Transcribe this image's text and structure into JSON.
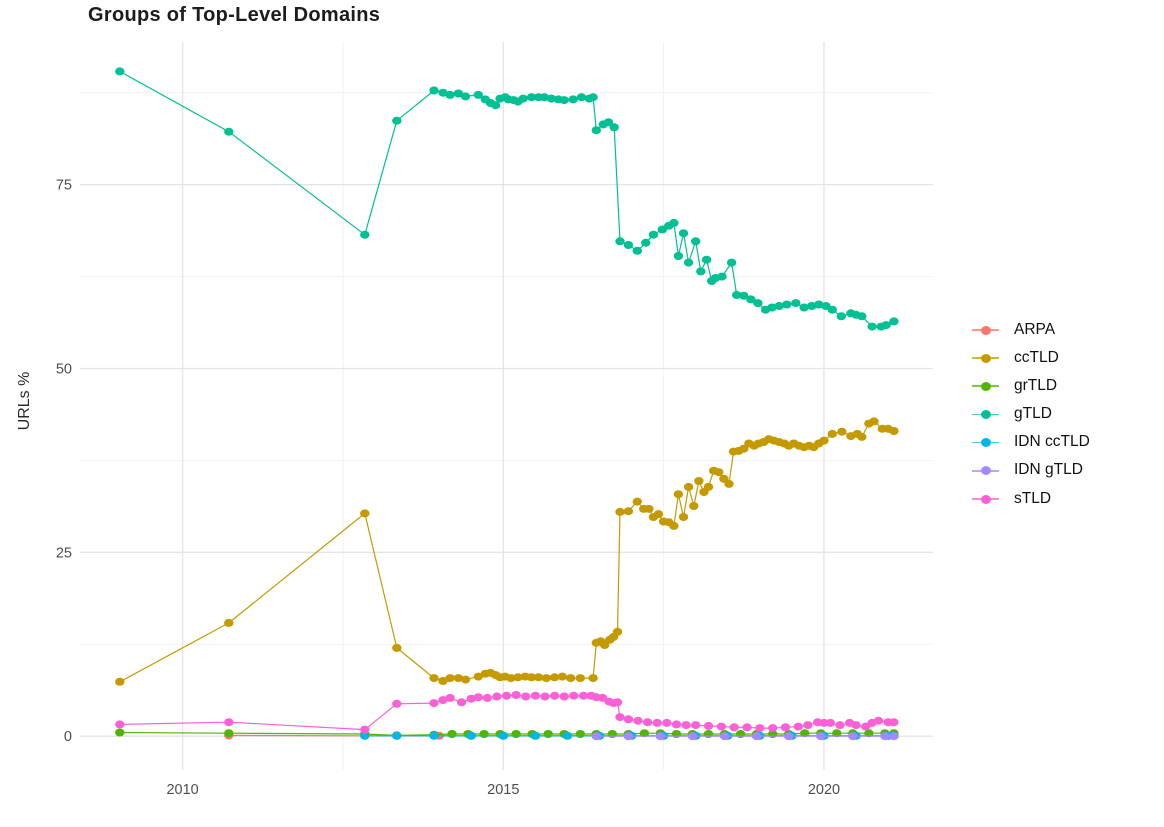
{
  "chart_data": {
    "type": "line",
    "title": "Groups of Top-Level Domains",
    "xlabel": "",
    "ylabel": "URLs %",
    "legend_position": "right",
    "grid": true,
    "background": "#ffffff",
    "grid_major_color": "#e4e4e4",
    "grid_minor_color": "#f1f1f1",
    "tick_color": "#4d4d4d",
    "xlim": [
      2008.4,
      2021.7
    ],
    "ylim": [
      -4.6,
      94.4
    ],
    "x_ticks": [
      {
        "label": "2010",
        "year": 2010
      },
      {
        "label": "2015",
        "year": 2015
      },
      {
        "label": "2020",
        "year": 2020
      }
    ],
    "x_minor_ticks": [
      2012.5,
      2017.5
    ],
    "y_ticks": [
      {
        "label": "0",
        "value": 0
      },
      {
        "label": "25",
        "value": 25
      },
      {
        "label": "50",
        "value": 50
      },
      {
        "label": "75",
        "value": 75
      }
    ],
    "y_minor_ticks": [
      12.5,
      37.5,
      62.5,
      87.5
    ],
    "series": [
      {
        "name": "ARPA",
        "color": "#F8766D",
        "points": [
          [
            2010.72,
            0.1
          ],
          [
            2012.84,
            0.05
          ],
          [
            2013.34,
            0.05
          ],
          [
            2014.0,
            0.05
          ],
          [
            2014.5,
            0.05
          ],
          [
            2015.0,
            0.05
          ],
          [
            2015.5,
            0.05
          ],
          [
            2016.0,
            0.05
          ],
          [
            2016.5,
            0.05
          ],
          [
            2017.0,
            0.05
          ],
          [
            2017.5,
            0.05
          ],
          [
            2018.0,
            0.05
          ],
          [
            2018.5,
            0.05
          ],
          [
            2019.0,
            0.05
          ],
          [
            2019.5,
            0.05
          ],
          [
            2020.0,
            0.05
          ],
          [
            2020.5,
            0.05
          ],
          [
            2021.0,
            0.05
          ],
          [
            2021.09,
            0.05
          ]
        ]
      },
      {
        "name": "ccTLD",
        "color": "#C49A00",
        "points": [
          [
            2009.02,
            7.4
          ],
          [
            2010.72,
            15.4
          ],
          [
            2012.84,
            30.3
          ],
          [
            2013.34,
            12.0
          ],
          [
            2013.92,
            7.9
          ],
          [
            2014.06,
            7.5
          ],
          [
            2014.17,
            7.9
          ],
          [
            2014.3,
            7.9
          ],
          [
            2014.41,
            7.7
          ],
          [
            2014.61,
            8.1
          ],
          [
            2014.72,
            8.5
          ],
          [
            2014.8,
            8.6
          ],
          [
            2014.88,
            8.3
          ],
          [
            2014.95,
            8.0
          ],
          [
            2015.03,
            8.1
          ],
          [
            2015.12,
            7.9
          ],
          [
            2015.23,
            8.0
          ],
          [
            2015.34,
            8.1
          ],
          [
            2015.44,
            8.0
          ],
          [
            2015.55,
            8.0
          ],
          [
            2015.67,
            7.9
          ],
          [
            2015.8,
            8.0
          ],
          [
            2015.92,
            8.1
          ],
          [
            2016.05,
            7.9
          ],
          [
            2016.2,
            7.9
          ],
          [
            2016.4,
            7.9
          ],
          [
            2016.45,
            12.7
          ],
          [
            2016.52,
            12.9
          ],
          [
            2016.58,
            12.4
          ],
          [
            2016.66,
            13.1
          ],
          [
            2016.72,
            13.5
          ],
          [
            2016.78,
            14.2
          ],
          [
            2016.82,
            30.5
          ],
          [
            2016.95,
            30.6
          ],
          [
            2017.09,
            31.9
          ],
          [
            2017.19,
            30.9
          ],
          [
            2017.27,
            30.9
          ],
          [
            2017.34,
            29.8
          ],
          [
            2017.42,
            30.2
          ],
          [
            2017.5,
            29.2
          ],
          [
            2017.58,
            29.1
          ],
          [
            2017.66,
            28.6
          ],
          [
            2017.73,
            32.9
          ],
          [
            2017.81,
            29.8
          ],
          [
            2017.89,
            33.9
          ],
          [
            2017.97,
            31.3
          ],
          [
            2018.05,
            34.7
          ],
          [
            2018.13,
            33.2
          ],
          [
            2018.2,
            33.9
          ],
          [
            2018.28,
            36.1
          ],
          [
            2018.36,
            35.9
          ],
          [
            2018.44,
            35.0
          ],
          [
            2018.52,
            34.3
          ],
          [
            2018.59,
            38.7
          ],
          [
            2018.67,
            38.8
          ],
          [
            2018.75,
            39.1
          ],
          [
            2018.83,
            39.8
          ],
          [
            2018.91,
            39.5
          ],
          [
            2018.98,
            39.8
          ],
          [
            2019.06,
            40.0
          ],
          [
            2019.14,
            40.4
          ],
          [
            2019.22,
            40.2
          ],
          [
            2019.3,
            40.0
          ],
          [
            2019.38,
            39.8
          ],
          [
            2019.45,
            39.5
          ],
          [
            2019.53,
            39.8
          ],
          [
            2019.61,
            39.5
          ],
          [
            2019.69,
            39.3
          ],
          [
            2019.77,
            39.5
          ],
          [
            2019.84,
            39.3
          ],
          [
            2019.92,
            39.8
          ],
          [
            2020.0,
            40.2
          ],
          [
            2020.13,
            41.1
          ],
          [
            2020.28,
            41.4
          ],
          [
            2020.42,
            40.8
          ],
          [
            2020.52,
            41.1
          ],
          [
            2020.59,
            40.7
          ],
          [
            2020.7,
            42.5
          ],
          [
            2020.78,
            42.8
          ],
          [
            2020.91,
            41.8
          ],
          [
            2021.0,
            41.8
          ],
          [
            2021.09,
            41.5
          ]
        ]
      },
      {
        "name": "grTLD",
        "color": "#53B400",
        "points": [
          [
            2009.02,
            0.5
          ],
          [
            2010.72,
            0.4
          ],
          [
            2012.84,
            0.3
          ],
          [
            2013.34,
            0.1
          ],
          [
            2013.92,
            0.2
          ],
          [
            2014.2,
            0.3
          ],
          [
            2014.45,
            0.3
          ],
          [
            2014.7,
            0.3
          ],
          [
            2014.95,
            0.3
          ],
          [
            2015.2,
            0.3
          ],
          [
            2015.45,
            0.3
          ],
          [
            2015.7,
            0.3
          ],
          [
            2015.95,
            0.3
          ],
          [
            2016.2,
            0.3
          ],
          [
            2016.45,
            0.3
          ],
          [
            2016.7,
            0.3
          ],
          [
            2016.95,
            0.3
          ],
          [
            2017.2,
            0.4
          ],
          [
            2017.45,
            0.4
          ],
          [
            2017.7,
            0.3
          ],
          [
            2017.95,
            0.3
          ],
          [
            2018.2,
            0.3
          ],
          [
            2018.45,
            0.3
          ],
          [
            2018.7,
            0.3
          ],
          [
            2018.95,
            0.3
          ],
          [
            2019.2,
            0.3
          ],
          [
            2019.45,
            0.3
          ],
          [
            2019.7,
            0.4
          ],
          [
            2019.95,
            0.4
          ],
          [
            2020.2,
            0.4
          ],
          [
            2020.45,
            0.4
          ],
          [
            2020.7,
            0.4
          ],
          [
            2020.95,
            0.4
          ],
          [
            2021.09,
            0.4
          ]
        ]
      },
      {
        "name": "gTLD",
        "color": "#00C094",
        "points": [
          [
            2009.02,
            90.4
          ],
          [
            2010.72,
            82.2
          ],
          [
            2012.84,
            68.2
          ],
          [
            2013.34,
            83.7
          ],
          [
            2013.92,
            87.8
          ],
          [
            2014.06,
            87.5
          ],
          [
            2014.17,
            87.2
          ],
          [
            2014.3,
            87.4
          ],
          [
            2014.41,
            87.0
          ],
          [
            2014.61,
            87.2
          ],
          [
            2014.72,
            86.6
          ],
          [
            2014.8,
            86.1
          ],
          [
            2014.88,
            85.8
          ],
          [
            2014.95,
            86.7
          ],
          [
            2015.03,
            86.9
          ],
          [
            2015.08,
            86.6
          ],
          [
            2015.16,
            86.5
          ],
          [
            2015.23,
            86.3
          ],
          [
            2015.31,
            86.7
          ],
          [
            2015.44,
            86.9
          ],
          [
            2015.55,
            86.9
          ],
          [
            2015.64,
            86.9
          ],
          [
            2015.75,
            86.7
          ],
          [
            2015.86,
            86.6
          ],
          [
            2015.95,
            86.5
          ],
          [
            2016.09,
            86.6
          ],
          [
            2016.22,
            86.9
          ],
          [
            2016.34,
            86.7
          ],
          [
            2016.4,
            86.9
          ],
          [
            2016.45,
            82.4
          ],
          [
            2016.56,
            83.2
          ],
          [
            2016.64,
            83.5
          ],
          [
            2016.73,
            82.8
          ],
          [
            2016.82,
            67.3
          ],
          [
            2016.95,
            66.8
          ],
          [
            2017.09,
            66.0
          ],
          [
            2017.22,
            67.1
          ],
          [
            2017.34,
            68.2
          ],
          [
            2017.48,
            68.9
          ],
          [
            2017.58,
            69.4
          ],
          [
            2017.66,
            69.8
          ],
          [
            2017.73,
            65.3
          ],
          [
            2017.81,
            68.4
          ],
          [
            2017.89,
            64.4
          ],
          [
            2018.0,
            67.3
          ],
          [
            2018.08,
            63.2
          ],
          [
            2018.17,
            64.8
          ],
          [
            2018.25,
            61.9
          ],
          [
            2018.31,
            62.3
          ],
          [
            2018.41,
            62.5
          ],
          [
            2018.56,
            64.4
          ],
          [
            2018.64,
            60.0
          ],
          [
            2018.75,
            59.9
          ],
          [
            2018.86,
            59.4
          ],
          [
            2018.97,
            58.9
          ],
          [
            2019.09,
            58.0
          ],
          [
            2019.19,
            58.3
          ],
          [
            2019.3,
            58.5
          ],
          [
            2019.42,
            58.7
          ],
          [
            2019.56,
            58.9
          ],
          [
            2019.69,
            58.3
          ],
          [
            2019.81,
            58.5
          ],
          [
            2019.92,
            58.7
          ],
          [
            2020.03,
            58.5
          ],
          [
            2020.13,
            58.0
          ],
          [
            2020.27,
            57.1
          ],
          [
            2020.42,
            57.5
          ],
          [
            2020.5,
            57.3
          ],
          [
            2020.59,
            57.1
          ],
          [
            2020.75,
            55.7
          ],
          [
            2020.89,
            55.7
          ],
          [
            2020.97,
            55.9
          ],
          [
            2021.09,
            56.4
          ]
        ]
      },
      {
        "name": "IDN ccTLD",
        "color": "#00B6EB",
        "points": [
          [
            2012.84,
            0.05
          ],
          [
            2013.34,
            0.05
          ],
          [
            2013.92,
            0.05
          ],
          [
            2014.5,
            0.05
          ],
          [
            2015.0,
            0.05
          ],
          [
            2015.5,
            0.05
          ],
          [
            2016.0,
            0.05
          ],
          [
            2016.5,
            0.05
          ],
          [
            2017.0,
            0.05
          ],
          [
            2017.5,
            0.05
          ],
          [
            2018.0,
            0.05
          ],
          [
            2018.5,
            0.05
          ],
          [
            2019.0,
            0.05
          ],
          [
            2019.5,
            0.05
          ],
          [
            2020.0,
            0.05
          ],
          [
            2020.5,
            0.05
          ],
          [
            2021.0,
            0.05
          ],
          [
            2021.09,
            0.05
          ]
        ]
      },
      {
        "name": "IDN gTLD",
        "color": "#A58AFF",
        "points": [
          [
            2016.45,
            0.0
          ],
          [
            2016.95,
            0.0
          ],
          [
            2017.45,
            0.0
          ],
          [
            2017.95,
            0.0
          ],
          [
            2018.45,
            0.0
          ],
          [
            2018.95,
            0.0
          ],
          [
            2019.45,
            0.0
          ],
          [
            2019.95,
            0.0
          ],
          [
            2020.45,
            0.0
          ],
          [
            2020.95,
            0.0
          ],
          [
            2021.09,
            0.0
          ]
        ]
      },
      {
        "name": "sTLD",
        "color": "#FB61D7",
        "points": [
          [
            2009.02,
            1.6
          ],
          [
            2010.72,
            1.9
          ],
          [
            2012.84,
            0.9
          ],
          [
            2013.34,
            4.4
          ],
          [
            2013.92,
            4.5
          ],
          [
            2014.06,
            4.9
          ],
          [
            2014.17,
            5.2
          ],
          [
            2014.35,
            4.6
          ],
          [
            2014.5,
            5.1
          ],
          [
            2014.61,
            5.3
          ],
          [
            2014.75,
            5.2
          ],
          [
            2014.9,
            5.4
          ],
          [
            2015.05,
            5.5
          ],
          [
            2015.2,
            5.6
          ],
          [
            2015.35,
            5.4
          ],
          [
            2015.5,
            5.5
          ],
          [
            2015.65,
            5.4
          ],
          [
            2015.8,
            5.5
          ],
          [
            2015.95,
            5.4
          ],
          [
            2016.1,
            5.5
          ],
          [
            2016.25,
            5.5
          ],
          [
            2016.37,
            5.5
          ],
          [
            2016.45,
            5.3
          ],
          [
            2016.55,
            5.2
          ],
          [
            2016.65,
            4.7
          ],
          [
            2016.72,
            4.5
          ],
          [
            2016.78,
            4.6
          ],
          [
            2016.82,
            2.6
          ],
          [
            2016.95,
            2.3
          ],
          [
            2017.1,
            2.1
          ],
          [
            2017.25,
            1.9
          ],
          [
            2017.4,
            1.8
          ],
          [
            2017.55,
            1.8
          ],
          [
            2017.7,
            1.6
          ],
          [
            2017.85,
            1.5
          ],
          [
            2018.0,
            1.5
          ],
          [
            2018.2,
            1.4
          ],
          [
            2018.4,
            1.3
          ],
          [
            2018.6,
            1.2
          ],
          [
            2018.8,
            1.2
          ],
          [
            2019.0,
            1.1
          ],
          [
            2019.2,
            1.1
          ],
          [
            2019.4,
            1.2
          ],
          [
            2019.6,
            1.3
          ],
          [
            2019.75,
            1.5
          ],
          [
            2019.9,
            1.9
          ],
          [
            2020.0,
            1.8
          ],
          [
            2020.1,
            1.8
          ],
          [
            2020.25,
            1.5
          ],
          [
            2020.4,
            1.8
          ],
          [
            2020.5,
            1.5
          ],
          [
            2020.65,
            1.3
          ],
          [
            2020.75,
            1.8
          ],
          [
            2020.85,
            2.1
          ],
          [
            2021.0,
            1.9
          ],
          [
            2021.09,
            1.9
          ]
        ]
      }
    ]
  }
}
